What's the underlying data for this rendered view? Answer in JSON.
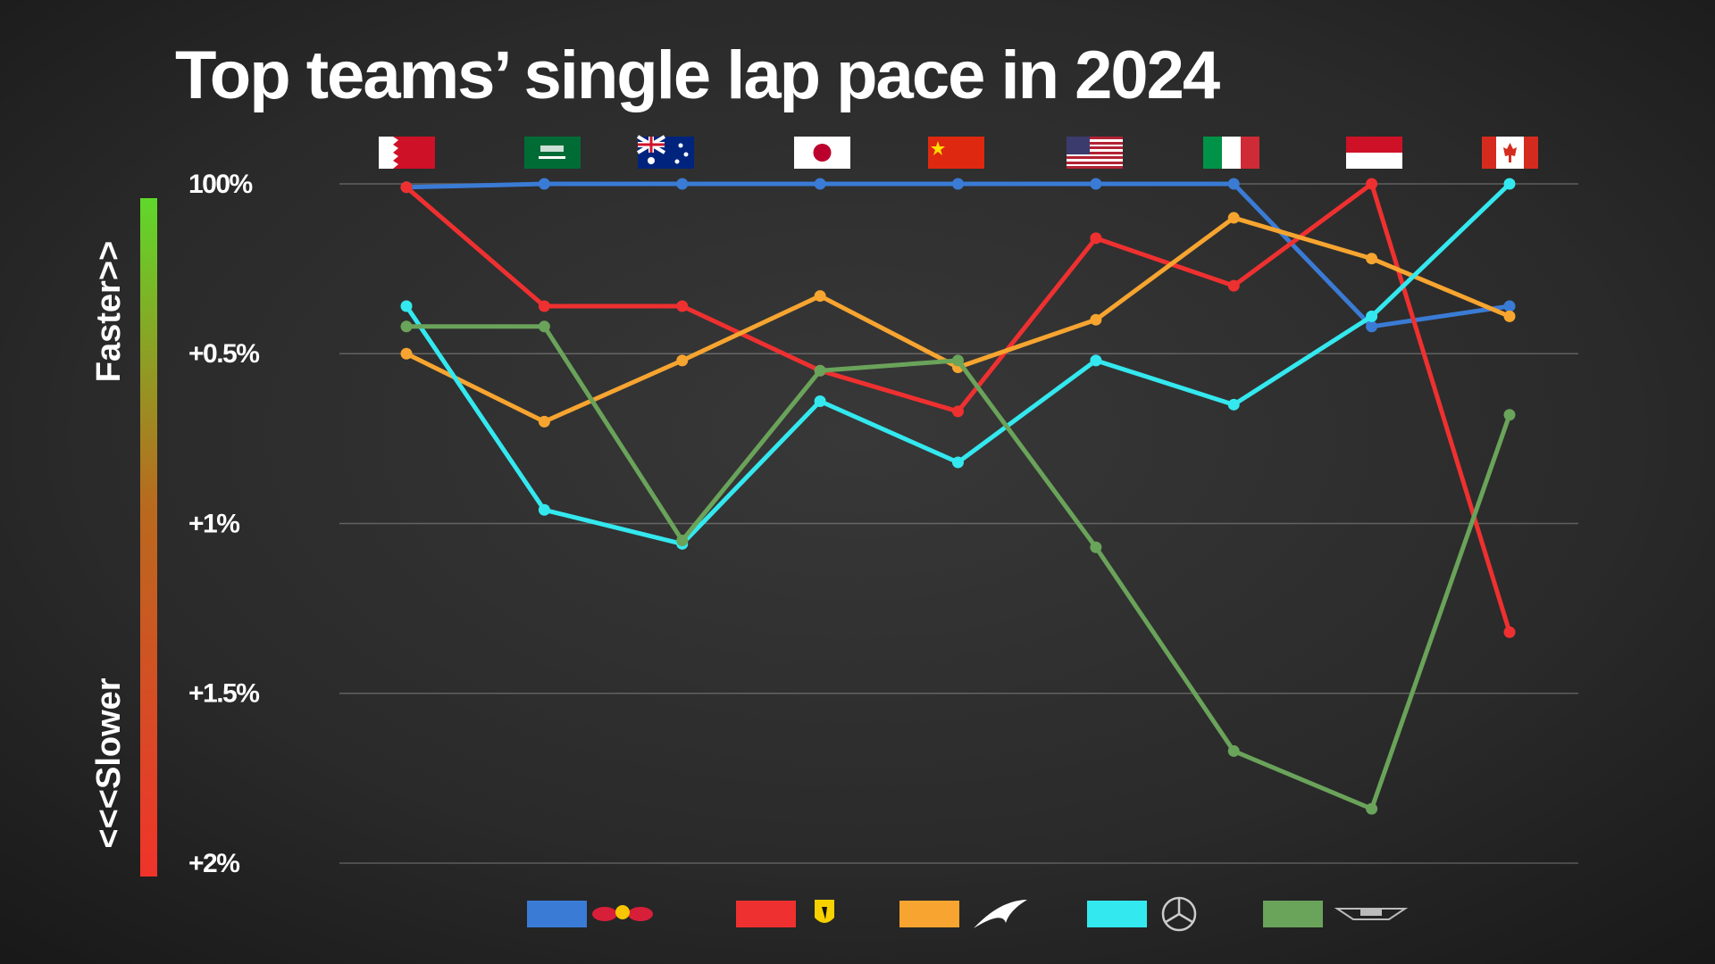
{
  "chart_data": {
    "type": "line",
    "title": "Top teams’ single lap pace in 2024",
    "annotations": [
      "Faster>>",
      "<<<Slower"
    ],
    "categories": [
      null,
      null,
      null,
      null,
      null,
      null,
      null,
      null,
      null
    ],
    "series": [
      {
        "color": "#3a7bd5",
        "values": [
          0.01,
          0,
          0,
          0,
          0,
          0,
          0,
          0.42,
          0.36
        ]
      },
      {
        "color": "#ef3030",
        "values": [
          0.01,
          0.36,
          0.36,
          0.55,
          0.67,
          0.16,
          0.3,
          0,
          1.32
        ]
      },
      {
        "color": "#f7a530",
        "values": [
          0.5,
          0.7,
          0.52,
          0.33,
          0.54,
          0.4,
          0.1,
          0.22,
          0.39
        ]
      },
      {
        "color": "#34e8ef",
        "values": [
          0.36,
          0.96,
          1.06,
          0.64,
          0.82,
          0.52,
          0.65,
          0.39,
          0
        ]
      },
      {
        "color": "#6aa35a",
        "values": [
          0.42,
          0.42,
          1.05,
          0.55,
          0.52,
          1.07,
          1.67,
          1.84,
          0.68
        ]
      }
    ],
    "ylim": [
      2,
      0
    ],
    "yticks": [
      {
        "value": 0,
        "label": "100%"
      },
      {
        "value": 0.5,
        "label": "+0.5%"
      },
      {
        "value": 1,
        "label": "+1%"
      },
      {
        "value": 1.5,
        "label": "+1.5%"
      },
      {
        "value": 2,
        "label": "+2%"
      }
    ],
    "grid": true
  }
}
